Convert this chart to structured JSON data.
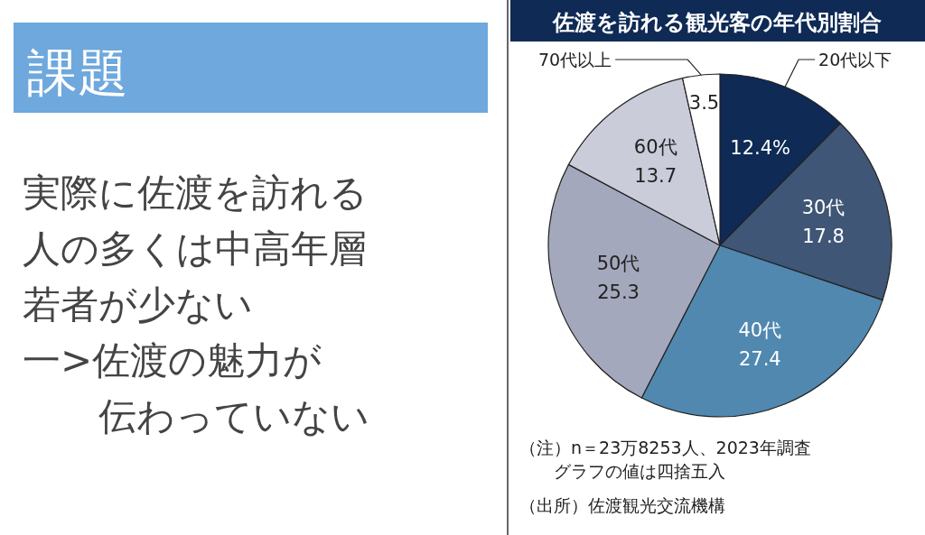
{
  "chart_data": {
    "type": "pie",
    "title": "佐渡を訪れる観光客の年代別割合",
    "categories": [
      "20代以下",
      "30代",
      "40代",
      "50代",
      "60代",
      "70代以上"
    ],
    "values": [
      12.4,
      17.8,
      27.4,
      25.3,
      13.7,
      3.5
    ],
    "value_labels": [
      "12.4%",
      "17.8",
      "27.4",
      "25.3",
      "13.7",
      "3.5"
    ],
    "colors": [
      "#0e2a55",
      "#3f5676",
      "#5088b0",
      "#a4a8bc",
      "#caccda",
      "#ffffff"
    ],
    "annotations": [
      "課題",
      "実際に佐渡を訪れる",
      "人の多くは中高年層",
      "若者が少ない",
      "一>佐渡の魅力が",
      "　　伝わっていない",
      "（注）n＝23万8253人、2023年調査",
      "　　グラフの値は四捨五入",
      "（出所）佐渡観光交流機構"
    ]
  }
}
